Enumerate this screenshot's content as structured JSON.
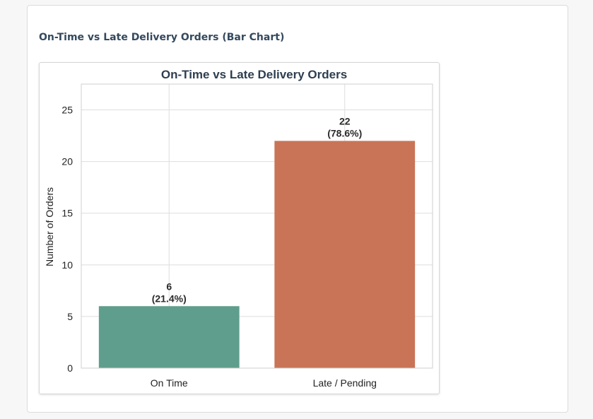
{
  "section": {
    "title": "On-Time vs Late Delivery Orders (Bar Chart)"
  },
  "chart_data": {
    "type": "bar",
    "title": "On-Time vs Late Delivery Orders",
    "xlabel": "",
    "ylabel": "Number of Orders",
    "categories": [
      "On Time",
      "Late / Pending"
    ],
    "values": [
      6,
      22
    ],
    "data_labels": [
      {
        "count": "6",
        "percent": "(21.4%)"
      },
      {
        "count": "22",
        "percent": "(78.6%)"
      }
    ],
    "colors": [
      "#5f9e8c",
      "#c97456"
    ],
    "ylim": [
      0,
      27.5
    ],
    "yticks": [
      0,
      5,
      10,
      15,
      20,
      25
    ],
    "grid": true
  }
}
